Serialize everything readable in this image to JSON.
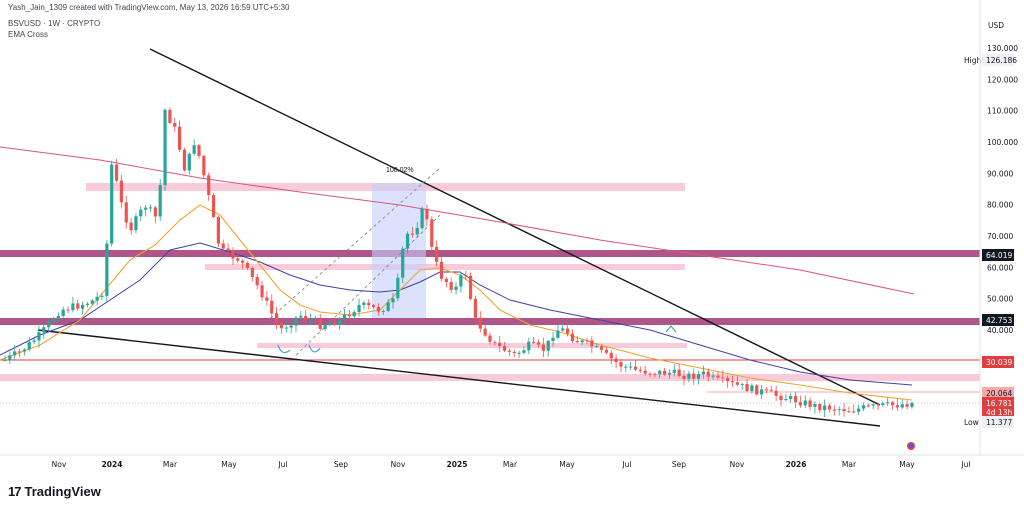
{
  "header": {
    "creator_line": "Yash_Jain_1309 created with TradingView.com, May 13, 2026 16:59 UTC+5:30",
    "symbol_line": "BSVUSD · 1W · CRYPTO",
    "indicator": "EMA Cross"
  },
  "footer": {
    "logo_text": "TradingView",
    "logo_mark": "17"
  },
  "chart_data": {
    "type": "candlestick",
    "symbol": "BSVUSD",
    "interval": "1W",
    "currency": "USD",
    "y_ticks": [
      40,
      50,
      60,
      70,
      80,
      90,
      100,
      110,
      120,
      130
    ],
    "y_tick_labels": [
      "40.000",
      "50.000",
      "60.000",
      "70.000",
      "80.000",
      "90.000",
      "100.000",
      "110.000",
      "120.000",
      "130.000"
    ],
    "x_ticks": [
      "Nov",
      "2024",
      "Mar",
      "May",
      "Jul",
      "Sep",
      "Nov",
      "2025",
      "Mar",
      "May",
      "Jul",
      "Sep",
      "Nov",
      "2026",
      "Mar",
      "May",
      "Jul"
    ],
    "price_badges": [
      {
        "label": "High",
        "value": "126.186",
        "kind": "high"
      },
      {
        "value": "64.019",
        "kind": "level",
        "color": "#131722"
      },
      {
        "value": "42.753",
        "kind": "level",
        "color": "#131722"
      },
      {
        "value": "30.039",
        "kind": "level",
        "color": "#e03e3e"
      },
      {
        "value": "20.064",
        "kind": "level",
        "color": "#f7a8a8"
      },
      {
        "value": "16.781",
        "kind": "last",
        "color": "#e03e3e"
      },
      {
        "value": "4d 13h",
        "kind": "countdown",
        "color": "#e03e3e"
      },
      {
        "label": "Low",
        "value": "11.377",
        "kind": "low"
      }
    ],
    "annotations": [
      {
        "text": "100.02%",
        "kind": "measure"
      }
    ],
    "series_names": [
      "EMA fast",
      "EMA slow",
      "MA long"
    ]
  }
}
